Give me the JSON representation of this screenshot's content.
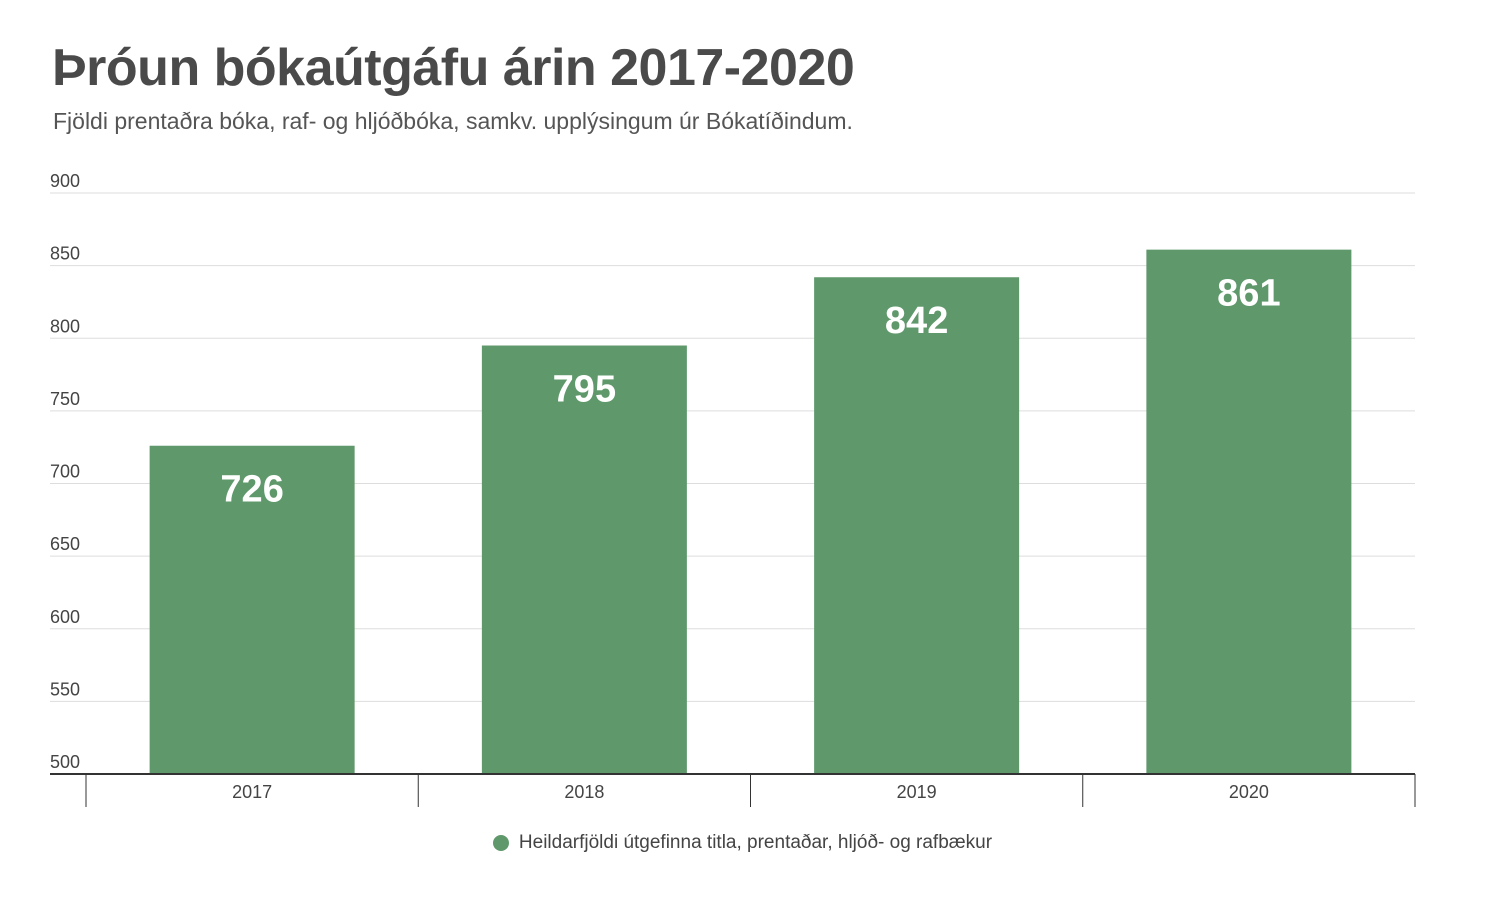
{
  "title": "Þróun bókaútgáfu árin 2017-2020",
  "subtitle": "Fjöldi prentaðra bóka, raf- og hljóðbóka, samkv. upplýsingum úr Bókatíðindum.",
  "colors": {
    "bar": "#5f986b",
    "grid": "#dddddd",
    "axis": "#333333",
    "tick_text": "#444444",
    "title": "#4a4a4a"
  },
  "chart_data": {
    "type": "bar",
    "title": "Þróun bókaútgáfu árin 2017-2020",
    "subtitle": "Fjöldi prentaðra bóka, raf- og hljóðbóka, samkv. upplýsingum úr Bókatíðindum.",
    "categories": [
      "2017",
      "2018",
      "2019",
      "2020"
    ],
    "series": [
      {
        "name": "Heildarfjöldi útgefinna titla, prentaðar, hljóð- og rafbækur",
        "values": [
          726,
          795,
          842,
          861
        ]
      }
    ],
    "ylim": [
      500,
      900
    ],
    "yticks": [
      "500",
      "550",
      "600",
      "650",
      "700",
      "750",
      "800",
      "850",
      "900"
    ],
    "grid": true,
    "legend": "bottom-center",
    "data_labels": [
      "726",
      "795",
      "842",
      "861"
    ]
  }
}
